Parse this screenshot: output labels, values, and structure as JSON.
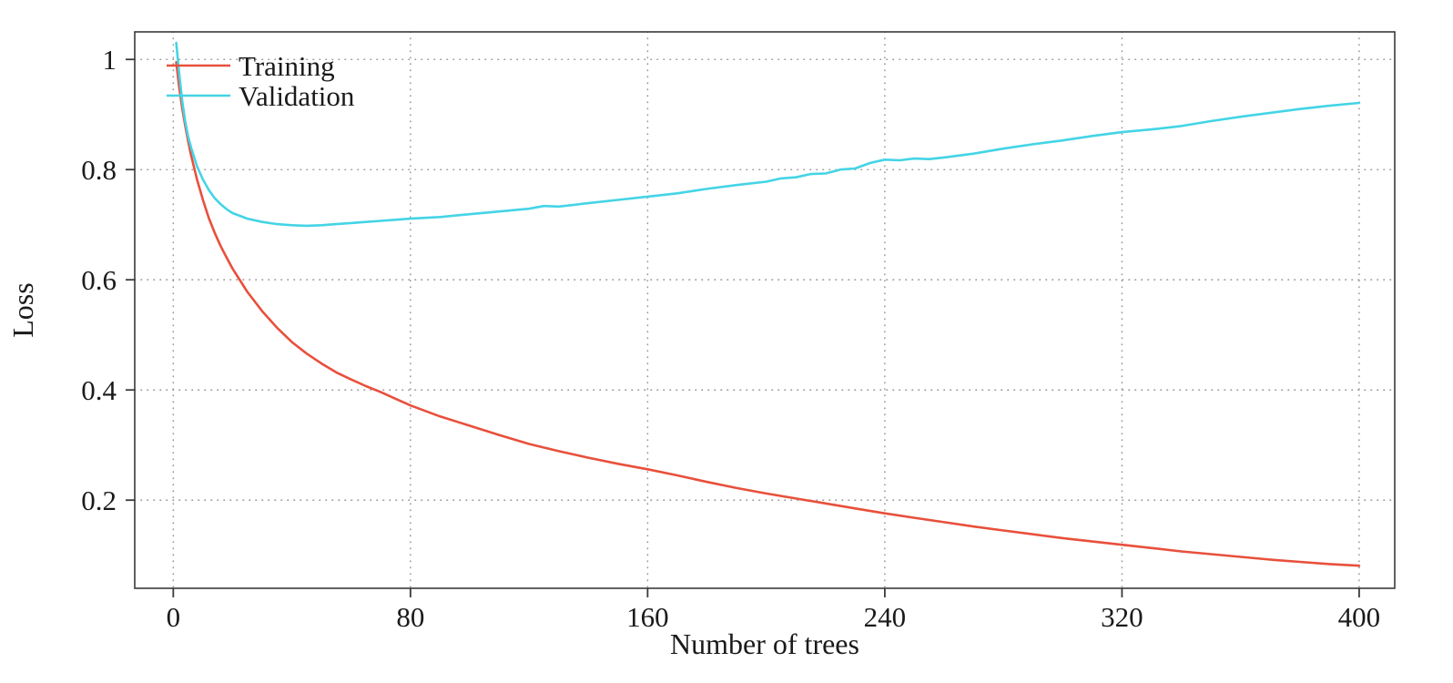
{
  "chart_data": {
    "type": "line",
    "title": "",
    "xlabel": "Number of trees",
    "ylabel": "Loss",
    "xlim": [
      -13,
      412
    ],
    "ylim": [
      0.04,
      1.05
    ],
    "x_ticks": [
      0,
      80,
      160,
      240,
      320,
      400
    ],
    "x_tick_labels": [
      "0",
      "80",
      "160",
      "240",
      "320",
      "400"
    ],
    "y_ticks": [
      0.2,
      0.4,
      0.6,
      0.8,
      1
    ],
    "y_tick_labels": [
      "0.2",
      "0.4",
      "0.6",
      "0.8",
      "1"
    ],
    "grid": true,
    "grid_style": "dotted",
    "legend_position": "top-left",
    "legend": [
      "Training",
      "Validation"
    ],
    "series": [
      {
        "name": "Training",
        "color": "#e8503c",
        "points": [
          [
            1,
            0.995
          ],
          [
            2,
            0.95
          ],
          [
            3,
            0.912
          ],
          [
            4,
            0.88
          ],
          [
            5,
            0.852
          ],
          [
            6,
            0.826
          ],
          [
            8,
            0.782
          ],
          [
            10,
            0.745
          ],
          [
            12,
            0.712
          ],
          [
            14,
            0.685
          ],
          [
            16,
            0.661
          ],
          [
            18,
            0.64
          ],
          [
            20,
            0.62
          ],
          [
            25,
            0.578
          ],
          [
            30,
            0.543
          ],
          [
            35,
            0.513
          ],
          [
            40,
            0.487
          ],
          [
            45,
            0.466
          ],
          [
            50,
            0.448
          ],
          [
            55,
            0.432
          ],
          [
            60,
            0.419
          ],
          [
            65,
            0.407
          ],
          [
            70,
            0.396
          ],
          [
            75,
            0.384
          ],
          [
            80,
            0.372
          ],
          [
            90,
            0.352
          ],
          [
            100,
            0.335
          ],
          [
            110,
            0.318
          ],
          [
            120,
            0.302
          ],
          [
            130,
            0.289
          ],
          [
            140,
            0.277
          ],
          [
            150,
            0.266
          ],
          [
            160,
            0.256
          ],
          [
            170,
            0.245
          ],
          [
            180,
            0.233
          ],
          [
            190,
            0.222
          ],
          [
            200,
            0.212
          ],
          [
            210,
            0.203
          ],
          [
            220,
            0.194
          ],
          [
            230,
            0.185
          ],
          [
            240,
            0.176
          ],
          [
            250,
            0.168
          ],
          [
            260,
            0.16
          ],
          [
            270,
            0.152
          ],
          [
            280,
            0.145
          ],
          [
            290,
            0.138
          ],
          [
            300,
            0.131
          ],
          [
            310,
            0.125
          ],
          [
            320,
            0.119
          ],
          [
            330,
            0.113
          ],
          [
            340,
            0.107
          ],
          [
            350,
            0.102
          ],
          [
            360,
            0.097
          ],
          [
            370,
            0.092
          ],
          [
            380,
            0.088
          ],
          [
            390,
            0.084
          ],
          [
            400,
            0.081
          ]
        ]
      },
      {
        "name": "Validation",
        "color": "#44d4e6",
        "points": [
          [
            1,
            1.03
          ],
          [
            2,
            0.975
          ],
          [
            3,
            0.925
          ],
          [
            4,
            0.888
          ],
          [
            5,
            0.86
          ],
          [
            6,
            0.84
          ],
          [
            8,
            0.806
          ],
          [
            10,
            0.782
          ],
          [
            12,
            0.763
          ],
          [
            14,
            0.748
          ],
          [
            16,
            0.737
          ],
          [
            18,
            0.728
          ],
          [
            20,
            0.721
          ],
          [
            25,
            0.711
          ],
          [
            30,
            0.705
          ],
          [
            35,
            0.701
          ],
          [
            40,
            0.699
          ],
          [
            45,
            0.698
          ],
          [
            50,
            0.699
          ],
          [
            55,
            0.701
          ],
          [
            60,
            0.703
          ],
          [
            65,
            0.705
          ],
          [
            70,
            0.707
          ],
          [
            75,
            0.709
          ],
          [
            80,
            0.711
          ],
          [
            90,
            0.714
          ],
          [
            100,
            0.719
          ],
          [
            110,
            0.724
          ],
          [
            120,
            0.729
          ],
          [
            125,
            0.734
          ],
          [
            130,
            0.733
          ],
          [
            140,
            0.739
          ],
          [
            150,
            0.745
          ],
          [
            160,
            0.751
          ],
          [
            170,
            0.757
          ],
          [
            180,
            0.765
          ],
          [
            190,
            0.772
          ],
          [
            200,
            0.778
          ],
          [
            205,
            0.784
          ],
          [
            210,
            0.786
          ],
          [
            215,
            0.792
          ],
          [
            220,
            0.793
          ],
          [
            225,
            0.8
          ],
          [
            230,
            0.802
          ],
          [
            235,
            0.812
          ],
          [
            240,
            0.818
          ],
          [
            245,
            0.817
          ],
          [
            250,
            0.82
          ],
          [
            255,
            0.819
          ],
          [
            260,
            0.822
          ],
          [
            270,
            0.829
          ],
          [
            280,
            0.838
          ],
          [
            290,
            0.846
          ],
          [
            300,
            0.853
          ],
          [
            310,
            0.861
          ],
          [
            320,
            0.868
          ],
          [
            330,
            0.873
          ],
          [
            340,
            0.879
          ],
          [
            350,
            0.888
          ],
          [
            360,
            0.896
          ],
          [
            370,
            0.903
          ],
          [
            380,
            0.91
          ],
          [
            390,
            0.916
          ],
          [
            400,
            0.921
          ]
        ]
      }
    ]
  },
  "colors": {
    "background": "#ffffff",
    "grid": "#999999",
    "axis_frame": "#3a3a3a",
    "tick": "#3a3a3a",
    "text": "#1a1a1a"
  }
}
